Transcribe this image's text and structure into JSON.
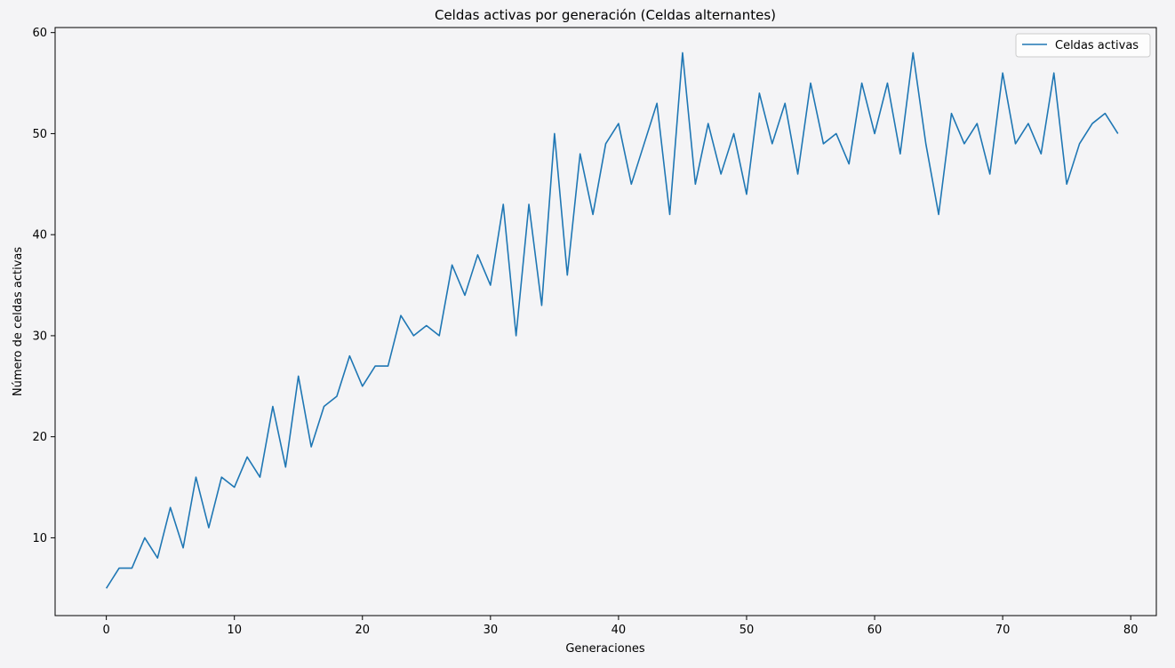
{
  "chart_data": {
    "type": "line",
    "title": "Celdas activas por generación (Celdas alternantes)",
    "xlabel": "Generaciones",
    "ylabel": "Número de celdas activas",
    "xlim": [
      -4,
      82
    ],
    "ylim": [
      2.3,
      60.5
    ],
    "xticks": [
      0,
      10,
      20,
      30,
      40,
      50,
      60,
      70,
      80
    ],
    "yticks": [
      10,
      20,
      30,
      40,
      50,
      60
    ],
    "grid": false,
    "legend": "top-right",
    "series": [
      {
        "name": "Celdas activas",
        "color": "#1f77b4",
        "x": [
          0,
          1,
          2,
          3,
          4,
          5,
          6,
          7,
          8,
          9,
          10,
          11,
          12,
          13,
          14,
          15,
          16,
          17,
          18,
          19,
          20,
          21,
          22,
          23,
          24,
          25,
          26,
          27,
          28,
          29,
          30,
          31,
          32,
          33,
          34,
          35,
          36,
          37,
          38,
          39,
          40,
          41,
          42,
          43,
          44,
          45,
          46,
          47,
          48,
          49,
          50,
          51,
          52,
          53,
          54,
          55,
          56,
          57,
          58,
          59,
          60,
          61,
          62,
          63,
          64,
          65,
          66,
          67,
          68,
          69,
          70,
          71,
          72,
          73,
          74,
          75,
          76,
          77,
          78,
          79
        ],
        "values": [
          5,
          7,
          7,
          10,
          8,
          13,
          9,
          16,
          11,
          16,
          15,
          18,
          16,
          23,
          17,
          26,
          19,
          23,
          24,
          28,
          25,
          27,
          27,
          32,
          30,
          31,
          30,
          37,
          34,
          38,
          35,
          43,
          30,
          43,
          33,
          50,
          36,
          48,
          42,
          49,
          51,
          45,
          49,
          53,
          42,
          58,
          45,
          51,
          46,
          50,
          44,
          54,
          49,
          53,
          46,
          55,
          49,
          50,
          47,
          55,
          50,
          55,
          48,
          58,
          49,
          42,
          52,
          49,
          51,
          46,
          56,
          49,
          51,
          48,
          56,
          45,
          49,
          51,
          52,
          50
        ]
      }
    ]
  }
}
